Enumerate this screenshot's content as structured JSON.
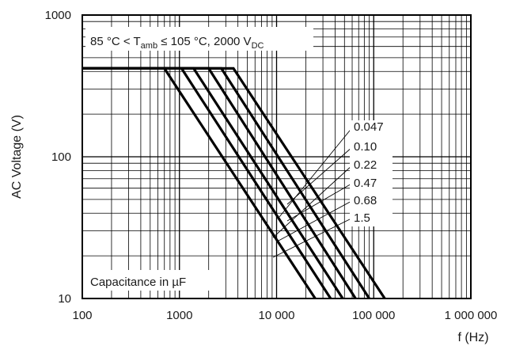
{
  "chart_data": {
    "type": "line",
    "title": "",
    "xlabel": "f (Hz)",
    "ylabel": "AC Voltage (V)",
    "x_scale": "log",
    "y_scale": "log",
    "xlim": [
      100,
      1000000
    ],
    "ylim": [
      10,
      1000
    ],
    "grid": true,
    "x_tick_labels": [
      "100",
      "1000",
      "10 000",
      "100 000",
      "1 000 000"
    ],
    "y_tick_labels": [
      "10",
      "100",
      "1000"
    ],
    "condition_prefix": "85 °C < T",
    "condition_sub": "amb",
    "condition_mid": " ≤ 105 °C, 2000 V",
    "condition_sub2": "DC",
    "legend_title": "Capacitance in µF",
    "series": [
      {
        "name": "0.047",
        "x": [
          100,
          3600,
          130000
        ],
        "y": [
          420,
          420,
          10
        ]
      },
      {
        "name": "0.10",
        "x": [
          100,
          2700,
          90000
        ],
        "y": [
          420,
          420,
          10
        ]
      },
      {
        "name": "0.22",
        "x": [
          100,
          2000,
          65000
        ],
        "y": [
          420,
          420,
          10
        ]
      },
      {
        "name": "0.47",
        "x": [
          100,
          1400,
          48000
        ],
        "y": [
          420,
          420,
          10
        ]
      },
      {
        "name": "0.68",
        "x": [
          100,
          1050,
          36000
        ],
        "y": [
          420,
          420,
          10
        ]
      },
      {
        "name": "1.5",
        "x": [
          100,
          700,
          25000
        ],
        "y": [
          420,
          420,
          10
        ]
      }
    ]
  }
}
